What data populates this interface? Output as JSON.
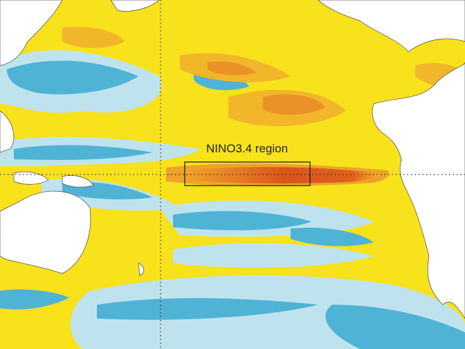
{
  "map": {
    "annotation": "NINO3.4 region"
  }
}
